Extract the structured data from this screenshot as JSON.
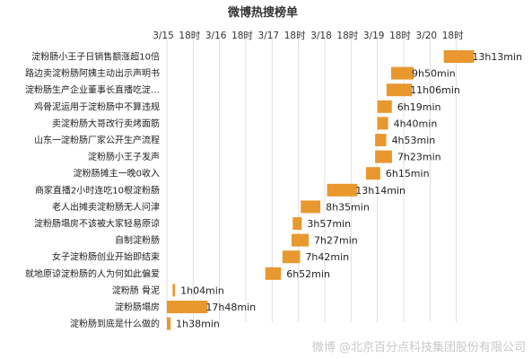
{
  "chart_data": {
    "type": "bar",
    "title": "微博热搜榜单",
    "x_ticks": [
      "3/15",
      "18时",
      "3/16",
      "18时",
      "3/17",
      "18时",
      "3/18",
      "18时",
      "3/19",
      "18时",
      "3/20",
      "18时"
    ],
    "xlim_hours": [
      0,
      138
    ],
    "grid": true,
    "bar_color": "#e8982f",
    "bars": [
      {
        "label": "淀粉肠小王子日销售额涨超10倍",
        "start_hour": 121,
        "duration": "13h13min",
        "hours": 13.22
      },
      {
        "label": "路边卖淀粉肠阿姨主动出示声明书",
        "start_hour": 98,
        "duration": "9h50min",
        "hours": 9.83
      },
      {
        "label": "淀粉肠生产企业董事长直播吃淀…",
        "start_hour": 96,
        "duration": "11h06min",
        "hours": 11.1
      },
      {
        "label": "鸡骨泥运用于淀粉肠中不算违规",
        "start_hour": 92,
        "duration": "6h19min",
        "hours": 6.32
      },
      {
        "label": "卖淀粉肠大哥改行卖烤面筋",
        "start_hour": 92,
        "duration": "4h40min",
        "hours": 4.67
      },
      {
        "label": "山东一淀粉肠厂家公开生产流程",
        "start_hour": 91,
        "duration": "4h53min",
        "hours": 4.88
      },
      {
        "label": "淀粉肠小王子发声",
        "start_hour": 91,
        "duration": "7h23min",
        "hours": 7.38
      },
      {
        "label": "淀粉肠摊主一晚0收入",
        "start_hour": 87,
        "duration": "6h15min",
        "hours": 6.25
      },
      {
        "label": "商家直播2小时连吃10根淀粉肠",
        "start_hour": 70,
        "duration": "13h14min",
        "hours": 13.23
      },
      {
        "label": "老人出摊卖淀粉肠无人问津",
        "start_hour": 58.5,
        "duration": "8h35min",
        "hours": 8.58
      },
      {
        "label": "淀粉肠塌房不该被大家轻易原谅",
        "start_hour": 55,
        "duration": "3h57min",
        "hours": 3.95
      },
      {
        "label": "自制淀粉肠",
        "start_hour": 54.5,
        "duration": "7h27min",
        "hours": 7.45
      },
      {
        "label": "女子淀粉肠创业开始即结束",
        "start_hour": 50.5,
        "duration": "7h42min",
        "hours": 7.7
      },
      {
        "label": "就地原谅淀粉肠的人为何如此偏爱",
        "start_hour": 43,
        "duration": "6h52min",
        "hours": 6.87
      },
      {
        "label": "淀粉肠 骨泥",
        "start_hour": 2.5,
        "duration": "1h04min",
        "hours": 1.07
      },
      {
        "label": "淀粉肠塌房",
        "start_hour": 0,
        "duration": "17h48min",
        "hours": 17.8
      },
      {
        "label": "淀粉肠到底是什么做的",
        "start_hour": 0,
        "duration": "1h38min",
        "hours": 1.63
      }
    ]
  },
  "watermark": "微博 @北京百分点科技集团股份有限公司"
}
